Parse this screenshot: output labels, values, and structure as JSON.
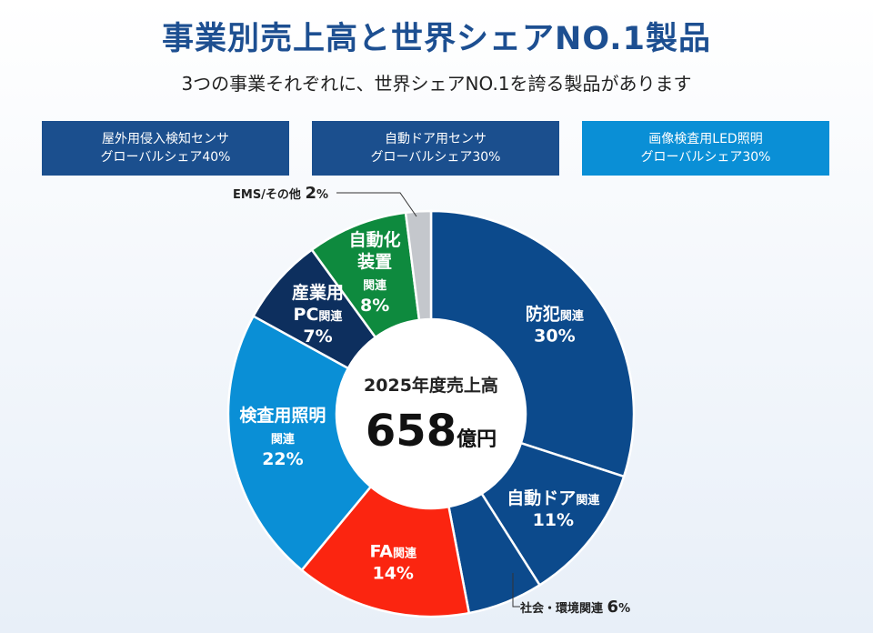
{
  "title": "事業別売上高と世界シェアNO.1製品",
  "subtitle": "3つの事業それぞれに、世界シェアNO.1を誇る製品があります",
  "badges": [
    {
      "line1": "屋外用侵入検知センサ",
      "line2": "グローバルシェア40%",
      "color": "#1b4f8e"
    },
    {
      "line1": "自動ドア用センサ",
      "line2": "グローバルシェア30%",
      "color": "#1b4f8e"
    },
    {
      "line1": "画像検査用LED照明",
      "line2": "グローバルシェア30%",
      "color": "#0a8fd6"
    }
  ],
  "center": {
    "label": "2025年度売上高",
    "value": "658",
    "unit": "億円"
  },
  "chart_data": {
    "type": "pie",
    "title": "2025年度売上高 658億円",
    "total": 658,
    "total_unit": "億円",
    "segments": [
      {
        "name": "防犯関連",
        "value": 30,
        "color": "#0c4a8c"
      },
      {
        "name": "自動ドア関連",
        "value": 11,
        "color": "#0c4a8c"
      },
      {
        "name": "社会・環境関連",
        "value": 6,
        "color": "#0c4a8c"
      },
      {
        "name": "FA関連",
        "value": 14,
        "color": "#fb2510"
      },
      {
        "name": "検査用照明関連",
        "value": 22,
        "color": "#0a8fd6"
      },
      {
        "name": "産業用PC関連",
        "value": 7,
        "color": "#0d2f5e"
      },
      {
        "name": "自動化装置関連",
        "value": 8,
        "color": "#0e8a3e"
      },
      {
        "name": "EMS/その他",
        "value": 2,
        "color": "#c4c7cc"
      }
    ],
    "labels": [
      {
        "lines": [
          {
            "a": "防犯",
            "b": "関連"
          },
          {
            "a": "30%",
            "b": ""
          }
        ]
      },
      {
        "lines": [
          {
            "a": "自動ドア",
            "b": "関連"
          },
          {
            "a": "11%",
            "b": ""
          }
        ]
      },
      {
        "lines": [
          {
            "a": "社会・環境関連 ",
            "b": ""
          },
          {
            "a": "6",
            "b": "%"
          }
        ]
      },
      {
        "lines": [
          {
            "a": "FA",
            "b": "関連"
          },
          {
            "a": "14%",
            "b": ""
          }
        ]
      },
      {
        "lines": [
          {
            "a": "検査用照明",
            "b": ""
          },
          {
            "a": "関連",
            "b": ""
          },
          {
            "a": "22%",
            "b": ""
          }
        ]
      },
      {
        "lines": [
          {
            "a": "産業用",
            "b": ""
          },
          {
            "a": "PC",
            "b": "関連"
          },
          {
            "a": "7%",
            "b": ""
          }
        ]
      },
      {
        "lines": [
          {
            "a": "自動化",
            "b": ""
          },
          {
            "a": "装置",
            "b": ""
          },
          {
            "a": "関連",
            "b": ""
          },
          {
            "a": "8%",
            "b": ""
          }
        ]
      },
      {
        "lines": [
          {
            "a": "EMS/その他 ",
            "b": ""
          },
          {
            "a": "2",
            "b": "%"
          }
        ]
      }
    ]
  }
}
